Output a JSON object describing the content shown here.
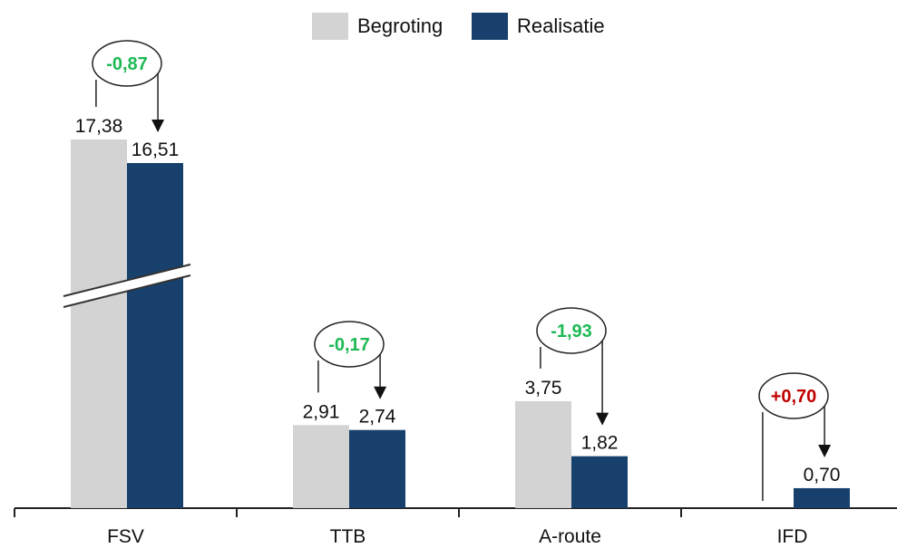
{
  "chart_data": {
    "type": "bar",
    "categories": [
      "FSV",
      "TTB",
      "A-route",
      "IFD"
    ],
    "series": [
      {
        "name": "Begroting",
        "values": [
          17.38,
          2.91,
          3.75,
          null
        ],
        "labels": [
          "17,38",
          "2,91",
          "3,75",
          ""
        ]
      },
      {
        "name": "Realisatie",
        "values": [
          16.51,
          2.74,
          1.82,
          0.7
        ],
        "labels": [
          "16,51",
          "2,74",
          "1,82",
          "0,70"
        ]
      }
    ],
    "differences": [
      {
        "category": "FSV",
        "label": "-0,87",
        "sign": "negative"
      },
      {
        "category": "TTB",
        "label": "-0,17",
        "sign": "negative"
      },
      {
        "category": "A-route",
        "label": "-1,93",
        "sign": "negative"
      },
      {
        "category": "IFD",
        "label": "+0,70",
        "sign": "positive"
      }
    ],
    "legend_position": "top-center",
    "axis_break": {
      "category": "FSV"
    },
    "colors": {
      "begroting": "#d3d3d3",
      "realisatie": "#17406d",
      "negative_diff": "#1db954",
      "positive_diff": "#c00000",
      "axis": "#222222"
    }
  }
}
